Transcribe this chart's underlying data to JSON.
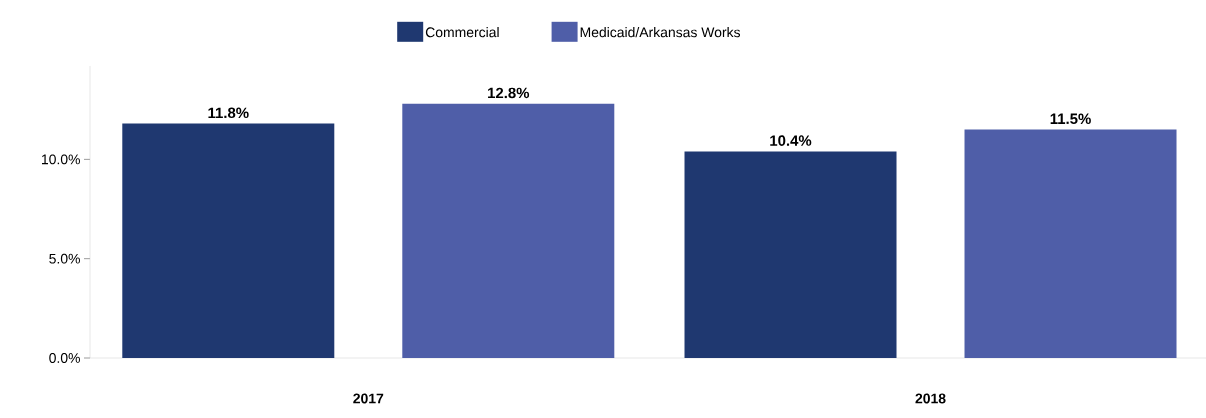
{
  "chart_data": {
    "type": "bar",
    "categories": [
      "2017",
      "2018"
    ],
    "series": [
      {
        "name": "Commercial",
        "color": "#1f3870",
        "values": [
          11.8,
          10.4
        ],
        "value_labels": [
          "11.8%",
          "10.4%"
        ]
      },
      {
        "name": "Medicaid/Arkansas Works",
        "color": "#4f5ea8",
        "values": [
          12.8,
          11.5
        ],
        "value_labels": [
          "12.8%",
          "11.5%"
        ]
      }
    ],
    "ylim": [
      0,
      14.7
    ],
    "yticks": [
      {
        "value": 0,
        "label": "0.0%"
      },
      {
        "value": 5,
        "label": "5.0%"
      },
      {
        "value": 10,
        "label": "10.0%"
      }
    ],
    "legend": "top",
    "grid": false
  }
}
